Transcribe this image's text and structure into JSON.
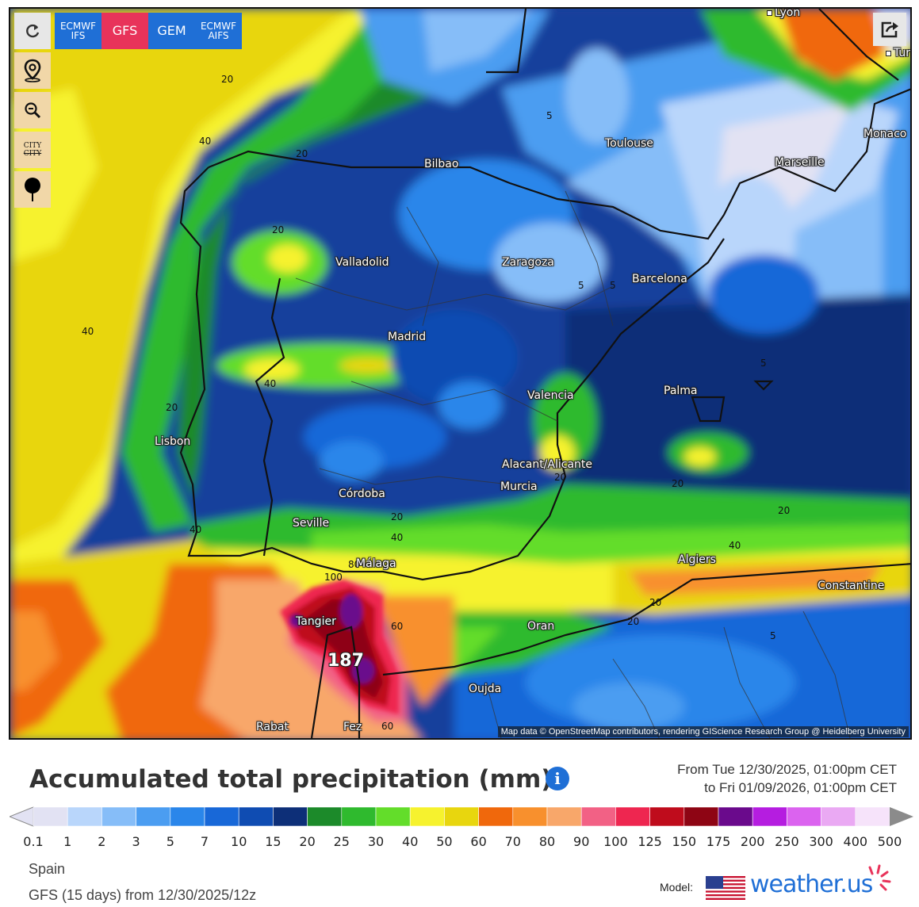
{
  "model_tabs": [
    {
      "label": "ECMWF IFS",
      "line1": "ECMWF",
      "line2": "IFS",
      "active": false
    },
    {
      "label": "GFS",
      "active": true
    },
    {
      "label": "GEM",
      "active": false
    },
    {
      "label": "ECMWF AIFS",
      "line1": "ECMWF",
      "line2": "AIFS",
      "active": false
    }
  ],
  "tools": {
    "reload_icon": "reload-icon",
    "location_icon": "location-pin-icon",
    "zoom_icon": "zoom-out-icon",
    "city_toggle": {
      "line1": "CITY",
      "line2": "CITY"
    },
    "pin_icon": "map-pin-icon",
    "share_icon": "share-icon"
  },
  "cities": [
    {
      "name": "Lyon"
    },
    {
      "name": "Turin"
    },
    {
      "name": "Toulouse"
    },
    {
      "name": "Monaco"
    },
    {
      "name": "Marseille"
    },
    {
      "name": "Bilbao"
    },
    {
      "name": "Valladolid"
    },
    {
      "name": "Zaragoza"
    },
    {
      "name": "Barcelona"
    },
    {
      "name": "Madrid"
    },
    {
      "name": "Palma"
    },
    {
      "name": "Valencia"
    },
    {
      "name": "Lisbon"
    },
    {
      "name": "Alacant/Alicante"
    },
    {
      "name": "Murcia"
    },
    {
      "name": "Córdoba"
    },
    {
      "name": "Seville"
    },
    {
      "name": "Málaga"
    },
    {
      "name": "Algiers"
    },
    {
      "name": "Constantine"
    },
    {
      "name": "Tangier"
    },
    {
      "name": "Oran"
    },
    {
      "name": "Oujda"
    },
    {
      "name": "Rabat"
    },
    {
      "name": "Fez"
    }
  ],
  "isolines": [
    "20",
    "40",
    "20",
    "5",
    "20",
    "5",
    "5",
    "40",
    "40",
    "20",
    "5",
    "20",
    "20",
    "20",
    "40",
    "40",
    "20",
    "5",
    "100",
    "60",
    "60",
    "20",
    "20",
    "80",
    "40"
  ],
  "peak_value": "187",
  "attribution": "Map data © OpenStreetMap contributors, rendering GIScience Research Group @ Heidelberg University",
  "legend": {
    "title": "Accumulated total precipitation (mm)",
    "info_icon": "info-icon",
    "period_from": "From Tue 12/30/2025, 01:00pm CET",
    "period_to": "to Fri 01/09/2026, 01:00pm CET",
    "unit": "mm",
    "scale": [
      {
        "label": "0.1",
        "color": "#e2e2f3"
      },
      {
        "label": "1",
        "color": "#b9d6fb"
      },
      {
        "label": "2",
        "color": "#86bdf8"
      },
      {
        "label": "3",
        "color": "#4b9df1"
      },
      {
        "label": "5",
        "color": "#2a86ea"
      },
      {
        "label": "7",
        "color": "#1868d8"
      },
      {
        "label": "10",
        "color": "#0f4cb2"
      },
      {
        "label": "15",
        "color": "#0d2f78"
      },
      {
        "label": "20",
        "color": "#1c8a2a"
      },
      {
        "label": "25",
        "color": "#2fba2e"
      },
      {
        "label": "30",
        "color": "#63dd2a"
      },
      {
        "label": "40",
        "color": "#f6f22e"
      },
      {
        "label": "50",
        "color": "#e8d60e"
      },
      {
        "label": "60",
        "color": "#f0680c"
      },
      {
        "label": "70",
        "color": "#f8902d"
      },
      {
        "label": "80",
        "color": "#f8a76a"
      },
      {
        "label": "90",
        "color": "#f26185"
      },
      {
        "label": "100",
        "color": "#ee2650"
      },
      {
        "label": "125",
        "color": "#bf0c1c"
      },
      {
        "label": "150",
        "color": "#8e0514"
      },
      {
        "label": "175",
        "color": "#6a0a8c"
      },
      {
        "label": "200",
        "color": "#b51de0"
      },
      {
        "label": "250",
        "color": "#db63ef"
      },
      {
        "label": "300",
        "color": "#eaa9f3"
      },
      {
        "label": "400",
        "color": "#f6e3fa"
      },
      {
        "label": "500",
        "color": "#cfcfcf"
      }
    ],
    "under_color": "#e2e2f3",
    "over_color": "#8b8b8b"
  },
  "region": "Spain",
  "run": "GFS (15 days) from 12/30/2025/12z",
  "model_label": "Model:",
  "brand": "weather.us"
}
